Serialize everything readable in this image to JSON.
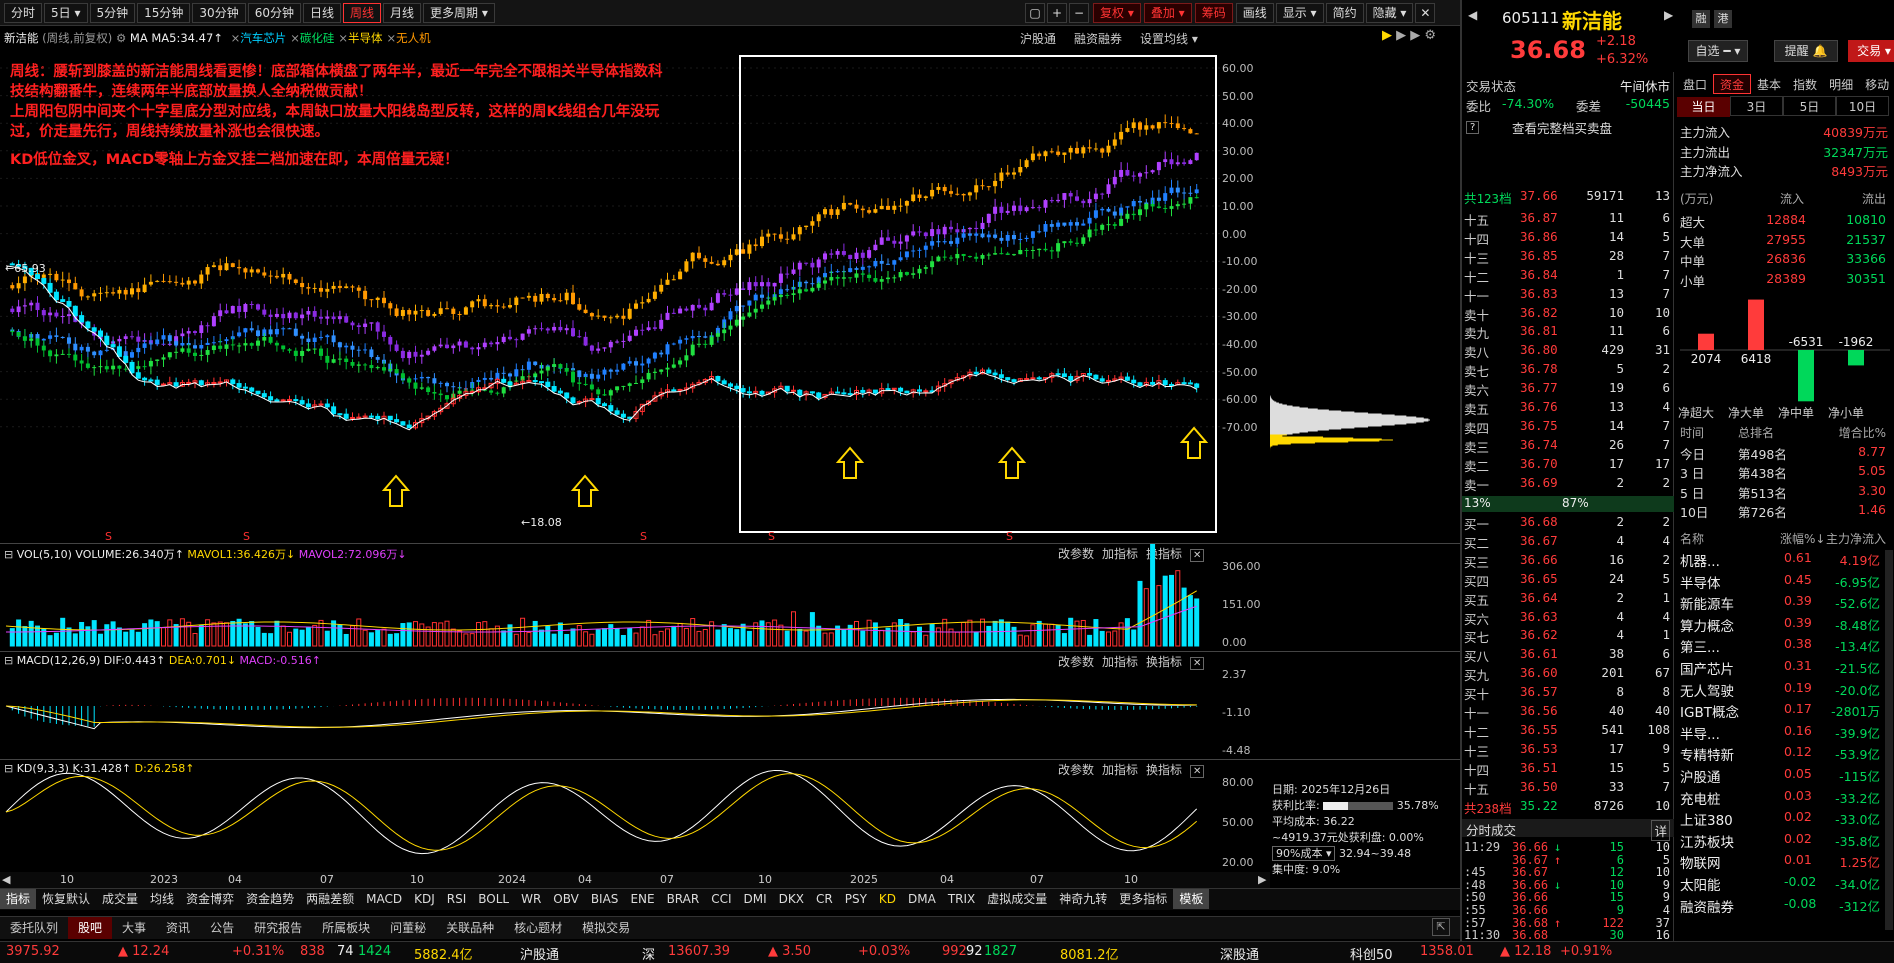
{
  "toolbar": {
    "periods": [
      "分时",
      "5日",
      "5分钟",
      "15分钟",
      "30分钟",
      "60分钟",
      "日线",
      "周线",
      "月线",
      "更多周期"
    ],
    "selected_period": "周线",
    "right_buttons": [
      "复权",
      "叠加",
      "筹码",
      "画线",
      "显示",
      "简约",
      "隐藏"
    ]
  },
  "chart_header": {
    "name": "新洁能",
    "mode": "(周线,前复权)",
    "ma_label": "MA",
    "ma5": "MA5:34.47",
    "overlays": [
      "汽车芯片",
      "碳化硅",
      "半导体",
      "无人机"
    ],
    "links": [
      "沪股通",
      "融资融券",
      "设置均线"
    ]
  },
  "annotation": {
    "line1": "周线：腰斩到膝盖的新洁能周线看更惨！底部箱体横盘了两年半，最近一年完全不跟相关半导体指数科",
    "line2": "技结构翻番牛，连续两年半底部放量换人全纳税做贡献！",
    "line3": "上周阳包阴中间夹个十字星底分型对应线，本周缺口放量大阳线岛型反转，这样的周K线组合几年没玩",
    "line4": "过，价走量先行，周线持续放量补涨也会很快速。",
    "line5": "KD低位金叉，MACD零轴上方金叉挂二档加速在即，本周倍量无疑！"
  },
  "price_axis": [
    "60.00",
    "50.00",
    "40.00",
    "30.00",
    "20.00",
    "10.00",
    "0.00",
    "-10.00",
    "-20.00",
    "-30.00",
    "-40.00",
    "-50.00",
    "-60.00",
    "-70.00"
  ],
  "price_marks": {
    "high": "65.93",
    "low": "18.08"
  },
  "vol": {
    "title": "VOL(5,10)",
    "volume": "VOLUME:26.340万",
    "mavol1": "MAVOL1:36.426万",
    "mavol2": "MAVOL2:72.096万",
    "axis": [
      "306.00",
      "151.00",
      "0.00"
    ]
  },
  "macd": {
    "title": "MACD(12,26,9)",
    "dif": "DIF:0.443",
    "dea": "DEA:0.701",
    "macd": "MACD:-0.516",
    "axis": [
      "2.37",
      "-1.10",
      "-4.48"
    ]
  },
  "kd": {
    "title": "KD(9,3,3)",
    "k": "K:31.428",
    "d": "D:26.258",
    "axis": [
      "80.00",
      "50.00",
      "20.00"
    ]
  },
  "pane_links": [
    "改参数",
    "加指标",
    "换指标"
  ],
  "x_axis": [
    "10",
    "2023",
    "04",
    "07",
    "10",
    "2024",
    "04",
    "07",
    "10",
    "2025",
    "04",
    "07",
    "10"
  ],
  "chip": {
    "date": "日期: 2025年12月26日",
    "profit_label": "获利比率:",
    "profit": "35.78%",
    "avg_label": "平均成本:",
    "avg": "36.22",
    "note": "~4919.37元处获利盘: 0.00%",
    "cost_sel": "90%成本",
    "cost_range": "32.94~39.48",
    "conc": "集中度: 9.0%",
    "pct_left": "13%",
    "pct_right": "87%"
  },
  "indicator_tabs": [
    "指标",
    "恢复默认",
    "成交量",
    "均线",
    "资金博弈",
    "资金趋势",
    "两融差额",
    "MACD",
    "KDJ",
    "RSI",
    "BOLL",
    "WR",
    "OBV",
    "BIAS",
    "ENE",
    "BRAR",
    "CCI",
    "DMI",
    "DKX",
    "CR",
    "PSY",
    "KD",
    "DMA",
    "TRIX",
    "虚拟成交量",
    "神奇九转",
    "更多指标",
    "模板"
  ],
  "bottom_tabs": [
    "委托队列",
    "股吧",
    "大事",
    "资讯",
    "公告",
    "研究报告",
    "所属板块",
    "问董秘",
    "关联品种",
    "核心题材",
    "模拟交易"
  ],
  "status": [
    {
      "v": "3975.92",
      "c": "red"
    },
    {
      "v": "▲ 12.24",
      "c": "red"
    },
    {
      "v": "+0.31%",
      "c": "red"
    },
    {
      "v": "838",
      "c": "red"
    },
    {
      "v": "74",
      "c": "wht"
    },
    {
      "v": "1424",
      "c": "grn"
    },
    {
      "v": "5882.4亿",
      "c": "yel"
    },
    {
      "v": "沪股通",
      "c": "wht"
    },
    {
      "v": "深",
      "c": "wht"
    },
    {
      "v": "13607.39",
      "c": "red"
    },
    {
      "v": "▲ 3.50",
      "c": "red"
    },
    {
      "v": "+0.03%",
      "c": "red"
    },
    {
      "v": "992",
      "c": "red"
    },
    {
      "v": "92",
      "c": "wht"
    },
    {
      "v": "1827",
      "c": "grn"
    },
    {
      "v": "8081.2亿",
      "c": "yel"
    },
    {
      "v": "深股通",
      "c": "wht"
    },
    {
      "v": "科创50",
      "c": "wht"
    },
    {
      "v": "1358.01",
      "c": "red"
    },
    {
      "v": "▲ 12.18",
      "c": "red"
    },
    {
      "v": "+0.91%",
      "c": "red"
    }
  ],
  "stock": {
    "code": "605111",
    "name": "新洁能",
    "price": "36.68",
    "change": "+2.18",
    "pct": "+6.32%",
    "btn1": "融",
    "btn2": "港",
    "zixuan": "自选",
    "tixing": "提醒",
    "trade": "交易"
  },
  "quote": {
    "state_label": "交易状态",
    "state": "午间休市",
    "wb_label": "委比",
    "wb": "-74.30%",
    "wc_label": "委差",
    "wc": "-50445",
    "full_btn": "查看完整档买卖盘",
    "sum_sell": [
      "共123档",
      "37.66",
      "59171",
      "13"
    ],
    "sum_buy": [
      "共238档",
      "35.22",
      "8726",
      "10"
    ]
  },
  "sells": [
    [
      "十五",
      "36.87",
      "11",
      "6"
    ],
    [
      "十四",
      "36.86",
      "14",
      "5"
    ],
    [
      "十三",
      "36.85",
      "28",
      "7"
    ],
    [
      "十二",
      "36.84",
      "1",
      "7"
    ],
    [
      "十一",
      "36.83",
      "13",
      "7"
    ],
    [
      "卖十",
      "36.82",
      "10",
      "10"
    ],
    [
      "卖九",
      "36.81",
      "11",
      "6"
    ],
    [
      "卖八",
      "36.80",
      "429",
      "31"
    ],
    [
      "卖七",
      "36.78",
      "5",
      "2"
    ],
    [
      "卖六",
      "36.77",
      "19",
      "6"
    ],
    [
      "卖五",
      "36.76",
      "13",
      "4"
    ],
    [
      "卖四",
      "36.75",
      "14",
      "7"
    ],
    [
      "卖三",
      "36.74",
      "26",
      "7"
    ],
    [
      "卖二",
      "36.70",
      "17",
      "17"
    ],
    [
      "卖一",
      "36.69",
      "2",
      "2"
    ]
  ],
  "buys": [
    [
      "买一",
      "36.68",
      "2",
      "2"
    ],
    [
      "买二",
      "36.67",
      "4",
      "4"
    ],
    [
      "买三",
      "36.66",
      "16",
      "2"
    ],
    [
      "买四",
      "36.65",
      "24",
      "5"
    ],
    [
      "买五",
      "36.64",
      "2",
      "1"
    ],
    [
      "买六",
      "36.63",
      "4",
      "4"
    ],
    [
      "买七",
      "36.62",
      "4",
      "1"
    ],
    [
      "买八",
      "36.61",
      "38",
      "6"
    ],
    [
      "买九",
      "36.60",
      "201",
      "67"
    ],
    [
      "买十",
      "36.57",
      "8",
      "8"
    ],
    [
      "十一",
      "36.56",
      "40",
      "40"
    ],
    [
      "十二",
      "36.55",
      "541",
      "108"
    ],
    [
      "十三",
      "36.53",
      "17",
      "9"
    ],
    [
      "十四",
      "36.51",
      "15",
      "5"
    ],
    [
      "十五",
      "36.50",
      "33",
      "7"
    ]
  ],
  "ticks_title": "分时成交",
  "ticks_more": "详",
  "ticks": [
    [
      "11:29",
      "36.66",
      "↓",
      "15",
      "10"
    ],
    [
      "",
      "36.67",
      "↑",
      "6",
      "5"
    ],
    [
      ":45",
      "36.67",
      "",
      "12",
      "10"
    ],
    [
      ":48",
      "36.66",
      "↓",
      "10",
      "9"
    ],
    [
      ":50",
      "36.66",
      "",
      "15",
      "9"
    ],
    [
      ":55",
      "36.66",
      "",
      "9",
      "4"
    ],
    [
      ":57",
      "36.68",
      "↑",
      "122",
      "37"
    ],
    [
      "11:30",
      "36.68",
      "",
      "30",
      "16"
    ]
  ],
  "fund_tabs": [
    "盘口",
    "资金",
    "基本",
    "指数",
    "明细",
    "移动"
  ],
  "fund_days": [
    "当日",
    "3日",
    "5日",
    "10日"
  ],
  "flows": [
    {
      "k": "主力流入",
      "v": "40839万元",
      "c": "red"
    },
    {
      "k": "主力流出",
      "v": "32347万元",
      "c": "grn"
    },
    {
      "k": "主力净流入",
      "v": "8493万元",
      "c": "red"
    }
  ],
  "flow_head": [
    "(万元)",
    "流入",
    "流出"
  ],
  "flow_rows": [
    [
      "超大",
      "12884",
      "10810"
    ],
    [
      "大单",
      "27955",
      "21537"
    ],
    [
      "中单",
      "26836",
      "33366"
    ],
    [
      "小单",
      "28389",
      "30351"
    ]
  ],
  "net_bars": [
    {
      "label": "净超大",
      "value": 2074
    },
    {
      "label": "净大单",
      "value": 6418
    },
    {
      "label": "净中单",
      "value": -6531
    },
    {
      "label": "净小单",
      "value": -1962
    }
  ],
  "rank_head": [
    "时间",
    "总排名",
    "增合比%"
  ],
  "ranks": [
    [
      "今日",
      "第498名",
      "8.77"
    ],
    [
      "3 日",
      "第438名",
      "5.05"
    ],
    [
      "5 日",
      "第513名",
      "3.30"
    ],
    [
      "10日",
      "第726名",
      "1.46"
    ]
  ],
  "sector_head": [
    "名称",
    "涨幅%↓",
    "主力净流入"
  ],
  "sectors": [
    [
      "机器...",
      "0.61",
      "4.19亿"
    ],
    [
      "半导体",
      "0.45",
      "-6.95亿"
    ],
    [
      "新能源车",
      "0.39",
      "-52.6亿"
    ],
    [
      "算力概念",
      "0.39",
      "-8.48亿"
    ],
    [
      "第三...",
      "0.38",
      "-13.4亿"
    ],
    [
      "国产芯片",
      "0.31",
      "-21.5亿"
    ],
    [
      "无人驾驶",
      "0.19",
      "-20.0亿"
    ],
    [
      "IGBT概念",
      "0.17",
      "-2801万"
    ],
    [
      "半导...",
      "0.16",
      "-39.9亿"
    ],
    [
      "专精特新",
      "0.12",
      "-53.9亿"
    ],
    [
      "沪股通",
      "0.05",
      "-115亿"
    ],
    [
      "充电桩",
      "0.03",
      "-33.2亿"
    ],
    [
      "上证380",
      "0.02",
      "-33.0亿"
    ],
    [
      "江苏板块",
      "0.02",
      "-35.8亿"
    ],
    [
      "物联网",
      "0.01",
      "1.25亿"
    ],
    [
      "太阳能",
      "-0.02",
      "-34.0亿"
    ],
    [
      "融资融券",
      "-0.08",
      "-312亿"
    ]
  ],
  "colors": {
    "up": "#ff3b3b",
    "down": "#00e5e5",
    "bg": "#000000"
  }
}
